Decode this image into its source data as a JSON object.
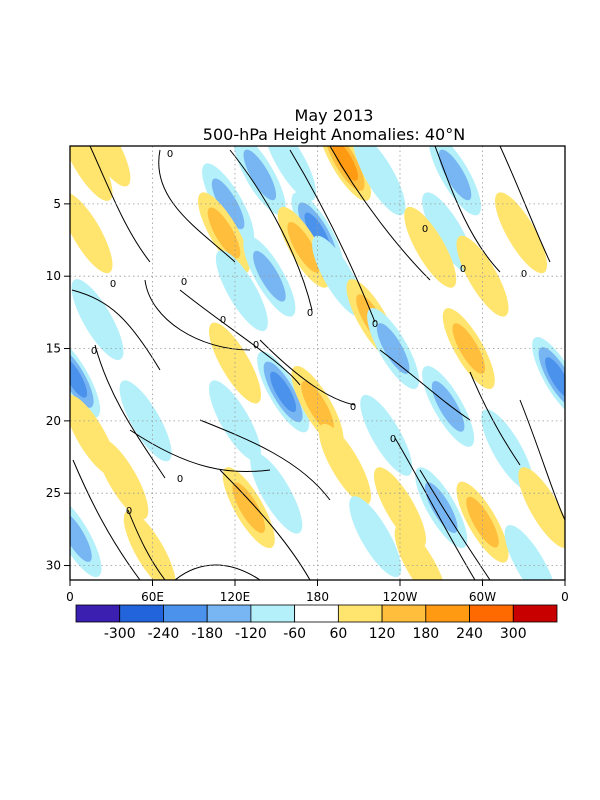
{
  "chart_data": {
    "type": "heatmap",
    "title": "May 2013",
    "subtitle": "500-hPa Height Anomalies: 40°N",
    "xlabel": "",
    "ylabel": "",
    "x_ticks": [
      "0",
      "60E",
      "120E",
      "180",
      "120W",
      "60W",
      "0"
    ],
    "x_range_deg": [
      0,
      360
    ],
    "y_ticks": [
      "5",
      "10",
      "15",
      "20",
      "25",
      "30"
    ],
    "y_range_day": [
      1,
      31
    ],
    "y_inverted": true,
    "grid": "dotted",
    "colorbar": {
      "labels": [
        "-300",
        "-240",
        "-180",
        "-120",
        "-60",
        "60",
        "120",
        "180",
        "240",
        "300"
      ],
      "colors": [
        "#3a1fb0",
        "#2264dc",
        "#4a92ec",
        "#78b6f3",
        "#b4f0fa",
        "#ffffff",
        "#ffe46e",
        "#ffbe3c",
        "#ff9a12",
        "#ff6a00",
        "#c80000"
      ]
    },
    "contour_label": "0",
    "anomaly_features": [
      {
        "lon": 12,
        "day": 2,
        "value": 100
      },
      {
        "lon": 12,
        "day": 7,
        "value": 80
      },
      {
        "lon": 25,
        "day": 1,
        "value": 80
      },
      {
        "lon": 20,
        "day": 13,
        "value": -80
      },
      {
        "lon": 3,
        "day": 17,
        "value": -180
      },
      {
        "lon": 15,
        "day": 21,
        "value": 110
      },
      {
        "lon": 4,
        "day": 28,
        "value": -150
      },
      {
        "lon": 38,
        "day": 24,
        "value": 100
      },
      {
        "lon": 58,
        "day": 29,
        "value": 90
      },
      {
        "lon": 55,
        "day": 20,
        "value": -60
      },
      {
        "lon": 115,
        "day": 5,
        "value": -150
      },
      {
        "lon": 112,
        "day": 7,
        "value": 120
      },
      {
        "lon": 138,
        "day": 3,
        "value": -120
      },
      {
        "lon": 145,
        "day": 10,
        "value": -140
      },
      {
        "lon": 125,
        "day": 11,
        "value": -90
      },
      {
        "lon": 120,
        "day": 16,
        "value": 100
      },
      {
        "lon": 155,
        "day": 18,
        "value": -200
      },
      {
        "lon": 120,
        "day": 20,
        "value": -70
      },
      {
        "lon": 130,
        "day": 26,
        "value": 140
      },
      {
        "lon": 150,
        "day": 25,
        "value": -110
      },
      {
        "lon": 180,
        "day": 7,
        "value": -200
      },
      {
        "lon": 170,
        "day": 8,
        "value": 140
      },
      {
        "lon": 200,
        "day": 2,
        "value": 180
      },
      {
        "lon": 160,
        "day": 2,
        "value": -110
      },
      {
        "lon": 195,
        "day": 10,
        "value": -90
      },
      {
        "lon": 180,
        "day": 19,
        "value": 150
      },
      {
        "lon": 200,
        "day": 23,
        "value": 100
      },
      {
        "lon": 220,
        "day": 13,
        "value": 160
      },
      {
        "lon": 235,
        "day": 15,
        "value": -170
      },
      {
        "lon": 230,
        "day": 21,
        "value": -90
      },
      {
        "lon": 222,
        "day": 28,
        "value": -70
      },
      {
        "lon": 240,
        "day": 26,
        "value": 110
      },
      {
        "lon": 225,
        "day": 3,
        "value": -100
      },
      {
        "lon": 280,
        "day": 3,
        "value": -150
      },
      {
        "lon": 275,
        "day": 7,
        "value": -70
      },
      {
        "lon": 262,
        "day": 8,
        "value": 90
      },
      {
        "lon": 290,
        "day": 15,
        "value": 130
      },
      {
        "lon": 300,
        "day": 10,
        "value": 90
      },
      {
        "lon": 275,
        "day": 19,
        "value": -120
      },
      {
        "lon": 300,
        "day": 27,
        "value": 170
      },
      {
        "lon": 270,
        "day": 26,
        "value": -140
      },
      {
        "lon": 255,
        "day": 30,
        "value": 80
      },
      {
        "lon": 318,
        "day": 22,
        "value": -80
      },
      {
        "lon": 328,
        "day": 7,
        "value": 100
      },
      {
        "lon": 355,
        "day": 17,
        "value": -200
      },
      {
        "lon": 335,
        "day": 30,
        "value": -100
      },
      {
        "lon": 345,
        "day": 26,
        "value": 70
      }
    ]
  }
}
